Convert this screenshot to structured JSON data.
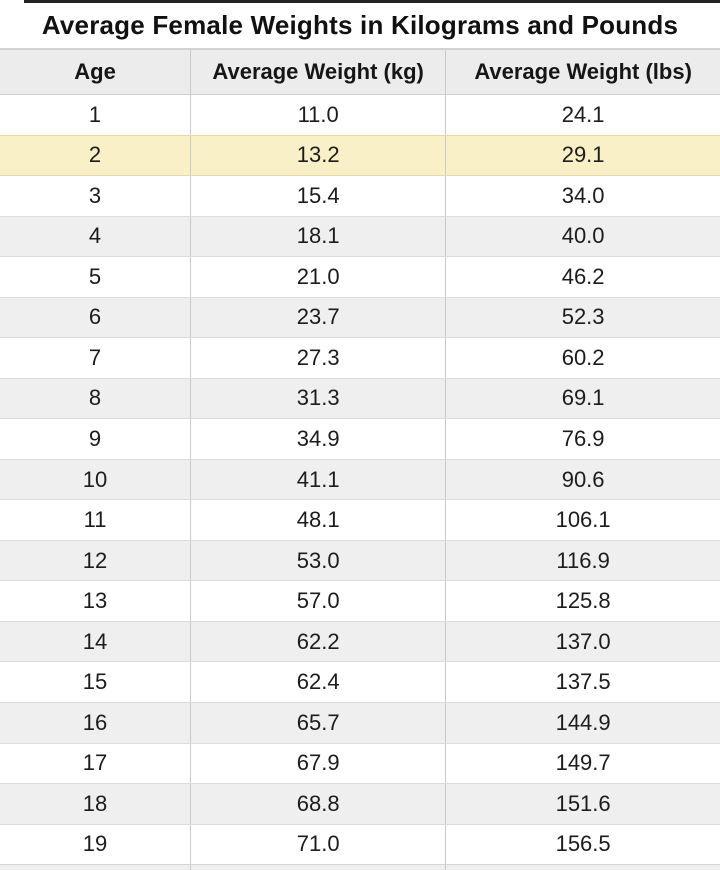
{
  "title": "Average Female Weights in Kilograms and Pounds",
  "colors": {
    "highlight_row": "#faf0c8",
    "alt_row": "#efefef",
    "header_bg": "#ececec",
    "row_border": "#dcdcdc",
    "column_divider": "#c9c9c9",
    "top_rule": "#242424",
    "text": "#1c1c1c"
  },
  "chart_data": {
    "type": "table",
    "title": "Average Female Weights in Kilograms and Pounds",
    "columns": [
      "Age",
      "Average Weight (kg)",
      "Average Weight (lbs)"
    ],
    "highlight_row_index": 1,
    "rows": [
      [
        "1",
        "11.0",
        "24.1"
      ],
      [
        "2",
        "13.2",
        "29.1"
      ],
      [
        "3",
        "15.4",
        "34.0"
      ],
      [
        "4",
        "18.1",
        "40.0"
      ],
      [
        "5",
        "21.0",
        "46.2"
      ],
      [
        "6",
        "23.7",
        "52.3"
      ],
      [
        "7",
        "27.3",
        "60.2"
      ],
      [
        "8",
        "31.3",
        "69.1"
      ],
      [
        "9",
        "34.9",
        "76.9"
      ],
      [
        "10",
        "41.1",
        "90.6"
      ],
      [
        "11",
        "48.1",
        "106.1"
      ],
      [
        "12",
        "53.0",
        "116.9"
      ],
      [
        "13",
        "57.0",
        "125.8"
      ],
      [
        "14",
        "62.2",
        "137.0"
      ],
      [
        "15",
        "62.4",
        "137.5"
      ],
      [
        "16",
        "65.7",
        "144.9"
      ],
      [
        "17",
        "67.9",
        "149.7"
      ],
      [
        "18",
        "68.8",
        "151.6"
      ],
      [
        "19",
        "71.0",
        "156.5"
      ]
    ]
  }
}
